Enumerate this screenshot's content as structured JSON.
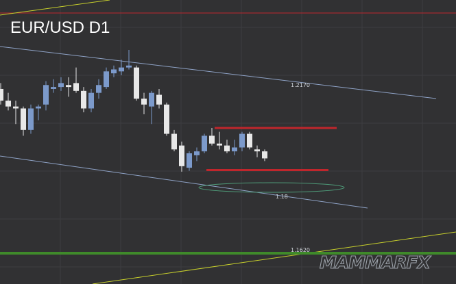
{
  "chart_data": {
    "type": "candlestick",
    "title": "EUR/USD D1",
    "watermark": "MAMMARFX",
    "colors": {
      "background": "#313133",
      "grid": "#3d3d40",
      "bull_candle": "#7c9acb",
      "bear_candle": "#e8e8e8",
      "channel": "#8fa3c7",
      "resistance_line": "#c0262c",
      "yellow_trend": "#c8d02c",
      "support_line": "#3f8a2a",
      "ellipse": "#4e9a78"
    },
    "candles": [
      {
        "o": 1.209,
        "h": 1.2105,
        "l": 1.205,
        "c": 1.206
      },
      {
        "o": 1.206,
        "h": 1.208,
        "l": 1.2035,
        "c": 1.2045
      },
      {
        "o": 1.2045,
        "h": 1.206,
        "l": 1.2,
        "c": 1.204
      },
      {
        "o": 1.204,
        "h": 1.2045,
        "l": 1.197,
        "c": 1.1985
      },
      {
        "o": 1.1985,
        "h": 1.205,
        "l": 1.1975,
        "c": 1.204
      },
      {
        "o": 1.204,
        "h": 1.205,
        "l": 1.201,
        "c": 1.2045
      },
      {
        "o": 1.205,
        "h": 1.211,
        "l": 1.2035,
        "c": 1.21
      },
      {
        "o": 1.209,
        "h": 1.2115,
        "l": 1.208,
        "c": 1.2095
      },
      {
        "o": 1.2095,
        "h": 1.212,
        "l": 1.2085,
        "c": 1.2105
      },
      {
        "o": 1.21,
        "h": 1.212,
        "l": 1.207,
        "c": 1.2095
      },
      {
        "o": 1.2105,
        "h": 1.2145,
        "l": 1.208,
        "c": 1.2085
      },
      {
        "o": 1.2085,
        "h": 1.2095,
        "l": 1.203,
        "c": 1.204
      },
      {
        "o": 1.204,
        "h": 1.209,
        "l": 1.203,
        "c": 1.208
      },
      {
        "o": 1.208,
        "h": 1.2115,
        "l": 1.2065,
        "c": 1.21
      },
      {
        "o": 1.2095,
        "h": 1.2145,
        "l": 1.209,
        "c": 1.2135
      },
      {
        "o": 1.213,
        "h": 1.215,
        "l": 1.212,
        "c": 1.214
      },
      {
        "o": 1.2135,
        "h": 1.2165,
        "l": 1.2125,
        "c": 1.2145
      },
      {
        "o": 1.2145,
        "h": 1.219,
        "l": 1.214,
        "c": 1.215
      },
      {
        "o": 1.2145,
        "h": 1.215,
        "l": 1.206,
        "c": 1.2065
      },
      {
        "o": 1.2065,
        "h": 1.208,
        "l": 1.2025,
        "c": 1.205
      },
      {
        "o": 1.2045,
        "h": 1.2085,
        "l": 1.2,
        "c": 1.208
      },
      {
        "o": 1.2075,
        "h": 1.209,
        "l": 1.204,
        "c": 1.205
      },
      {
        "o": 1.205,
        "h": 1.2055,
        "l": 1.197,
        "c": 1.1975
      },
      {
        "o": 1.1975,
        "h": 1.1985,
        "l": 1.193,
        "c": 1.1935
      },
      {
        "o": 1.1945,
        "h": 1.1955,
        "l": 1.1878,
        "c": 1.1892
      },
      {
        "o": 1.1888,
        "h": 1.193,
        "l": 1.188,
        "c": 1.1925
      },
      {
        "o": 1.192,
        "h": 1.194,
        "l": 1.1905,
        "c": 1.193
      },
      {
        "o": 1.193,
        "h": 1.1975,
        "l": 1.1925,
        "c": 1.197
      },
      {
        "o": 1.197,
        "h": 1.199,
        "l": 1.1945,
        "c": 1.195
      },
      {
        "o": 1.195,
        "h": 1.198,
        "l": 1.1935,
        "c": 1.1945
      },
      {
        "o": 1.1945,
        "h": 1.196,
        "l": 1.1925,
        "c": 1.193
      },
      {
        "o": 1.193,
        "h": 1.196,
        "l": 1.192,
        "c": 1.194
      },
      {
        "o": 1.194,
        "h": 1.198,
        "l": 1.193,
        "c": 1.1975
      },
      {
        "o": 1.1975,
        "h": 1.198,
        "l": 1.1935,
        "c": 1.194
      },
      {
        "o": 1.1935,
        "h": 1.1945,
        "l": 1.1915,
        "c": 1.193
      },
      {
        "o": 1.193,
        "h": 1.1935,
        "l": 1.1905,
        "c": 1.1912
      }
    ],
    "level_labels": [
      "1.2170",
      "1.18",
      "1.1620"
    ],
    "resistance_level": 1.199,
    "support_level": 1.1882,
    "ylim": [
      1.159,
      1.2318
    ],
    "grid": true,
    "legend": "none"
  }
}
